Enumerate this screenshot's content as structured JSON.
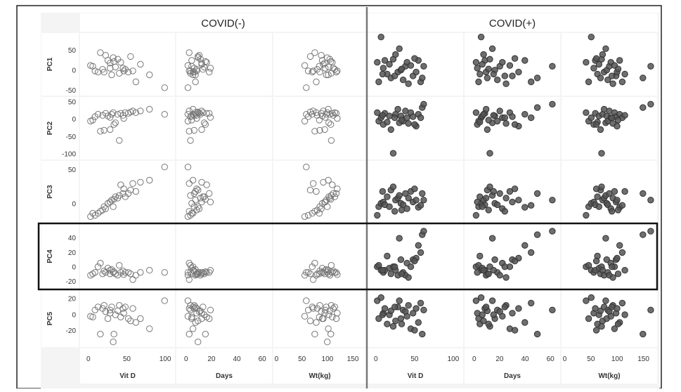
{
  "chart_data": {
    "type": "scatter",
    "layout": "scatter-matrix",
    "groups": [
      "COVID(-)",
      "COVID(+)"
    ],
    "x_variables": [
      {
        "label": "Vit D",
        "ticks": [
          "0",
          "50",
          "100"
        ],
        "range": [
          -8,
          110
        ]
      },
      {
        "label": "Days",
        "ticks": [
          "0",
          "20",
          "40",
          "60"
        ],
        "range": [
          -6,
          66
        ]
      },
      {
        "label": "Wt(kg)",
        "ticks": [
          "0",
          "50",
          "100",
          "150"
        ],
        "range": [
          -2,
          172
        ]
      }
    ],
    "y_variables": [
      {
        "label": "PC1",
        "ticks": [
          "50",
          "0",
          "-50"
        ],
        "range": [
          -58,
          88
        ]
      },
      {
        "label": "PC2",
        "ticks": [
          "50",
          "0",
          "-50",
          "-100"
        ],
        "range": [
          -110,
          58
        ]
      },
      {
        "label": "PC3",
        "ticks": [
          "50",
          "0"
        ],
        "range": [
          -25,
          60
        ]
      },
      {
        "label": "PC4",
        "ticks": [
          "40",
          "20",
          "0",
          "-20"
        ],
        "range": [
          -27,
          56
        ]
      },
      {
        "label": "PC5",
        "ticks": [
          "20",
          "0",
          "-20"
        ],
        "range": [
          -38,
          28
        ]
      }
    ],
    "highlighted_row": "PC4",
    "marker_style": {
      "COVID(-)": {
        "fill": "none",
        "stroke": "#777777"
      },
      "COVID(+)": {
        "fill": "#555555",
        "stroke": "#333333"
      }
    },
    "points": {
      "COVID(-)": [
        {
          "vitd": 2,
          "days": 1,
          "wt": 55,
          "pc": [
            12,
            -5,
            -20,
            -12,
            -2
          ]
        },
        {
          "vitd": 8,
          "days": 3,
          "wt": 62,
          "pc": [
            -2,
            8,
            -18,
            -8,
            6
          ]
        },
        {
          "vitd": 12,
          "days": 5,
          "wt": 70,
          "pc": [
            -5,
            15,
            -15,
            0,
            10
          ]
        },
        {
          "vitd": 15,
          "days": 2,
          "wt": 75,
          "pc": [
            45,
            -35,
            -12,
            5,
            -25
          ]
        },
        {
          "vitd": 18,
          "days": 8,
          "wt": 80,
          "pc": [
            2,
            12,
            -10,
            -10,
            8
          ]
        },
        {
          "vitd": 20,
          "days": 6,
          "wt": 85,
          "pc": [
            -5,
            -32,
            -5,
            -6,
            12
          ]
        },
        {
          "vitd": 22,
          "days": 10,
          "wt": 88,
          "pc": [
            38,
            18,
            -8,
            -8,
            4
          ]
        },
        {
          "vitd": 25,
          "days": 4,
          "wt": 90,
          "pc": [
            25,
            10,
            0,
            -2,
            -5
          ]
        },
        {
          "vitd": 28,
          "days": 12,
          "wt": 95,
          "pc": [
            18,
            -30,
            2,
            -10,
            2
          ]
        },
        {
          "vitd": 30,
          "days": 7,
          "wt": 98,
          "pc": [
            -12,
            15,
            5,
            -4,
            10
          ]
        },
        {
          "vitd": 32,
          "days": 9,
          "wt": 100,
          "pc": [
            32,
            20,
            -5,
            -8,
            -35
          ]
        },
        {
          "vitd": 35,
          "days": 14,
          "wt": 103,
          "pc": [
            8,
            -10,
            10,
            -10,
            0
          ]
        },
        {
          "vitd": 38,
          "days": 11,
          "wt": 105,
          "pc": [
            28,
            15,
            8,
            -12,
            5
          ]
        },
        {
          "vitd": 40,
          "days": 3,
          "wt": 108,
          "pc": [
            -8,
            -62,
            12,
            2,
            12
          ]
        },
        {
          "vitd": 42,
          "days": 16,
          "wt": 110,
          "pc": [
            20,
            18,
            28,
            -8,
            -3
          ]
        },
        {
          "vitd": 45,
          "days": 6,
          "wt": 112,
          "pc": [
            5,
            12,
            15,
            -6,
            8
          ]
        },
        {
          "vitd": 48,
          "days": 13,
          "wt": 115,
          "pc": [
            2,
            20,
            10,
            -8,
            10
          ]
        },
        {
          "vitd": 52,
          "days": 18,
          "wt": 118,
          "pc": [
            -5,
            18,
            15,
            -8,
            -5
          ]
        },
        {
          "vitd": 55,
          "days": 9,
          "wt": 66,
          "pc": [
            35,
            22,
            20,
            -10,
            -8
          ]
        },
        {
          "vitd": 58,
          "days": 2,
          "wt": 72,
          "pc": [
            -2,
            25,
            30,
            -18,
            8
          ]
        },
        {
          "vitd": 62,
          "days": 7,
          "wt": 78,
          "pc": [
            -30,
            20,
            18,
            -12,
            -10
          ]
        },
        {
          "vitd": 68,
          "days": 12,
          "wt": 92,
          "pc": [
            15,
            25,
            32,
            -8,
            -5
          ]
        },
        {
          "vitd": 80,
          "days": 5,
          "wt": 102,
          "pc": [
            -12,
            30,
            35,
            -5,
            -18
          ]
        },
        {
          "vitd": 100,
          "days": 1,
          "wt": 58,
          "pc": [
            -45,
            15,
            55,
            -8,
            18
          ]
        },
        {
          "vitd": 5,
          "days": 4,
          "wt": 84,
          "pc": [
            10,
            -2,
            -15,
            -10,
            -3
          ]
        },
        {
          "vitd": 28,
          "days": 19,
          "wt": 96,
          "pc": [
            5,
            6,
            2,
            -5,
            6
          ]
        },
        {
          "vitd": 33,
          "days": 15,
          "wt": 107,
          "pc": [
            22,
            -15,
            6,
            -7,
            -25
          ]
        },
        {
          "vitd": 46,
          "days": 8,
          "wt": 120,
          "pc": [
            -2,
            3,
            22,
            -11,
            2
          ]
        }
      ],
      "COVID(+)": [
        {
          "vitd": 1,
          "days": 1,
          "wt": 40,
          "pc": [
            20,
            20,
            -18,
            0,
            18
          ]
        },
        {
          "vitd": 3,
          "days": 3,
          "wt": 45,
          "pc": [
            -30,
            -5,
            -5,
            2,
            -5
          ]
        },
        {
          "vitd": 6,
          "days": 5,
          "wt": 50,
          "pc": [
            85,
            5,
            0,
            -5,
            22
          ]
        },
        {
          "vitd": 9,
          "days": 2,
          "wt": 55,
          "pc": [
            5,
            -15,
            2,
            -8,
            2
          ]
        },
        {
          "vitd": 11,
          "days": 8,
          "wt": 58,
          "pc": [
            25,
            18,
            -2,
            -5,
            8
          ]
        },
        {
          "vitd": 14,
          "days": 4,
          "wt": 62,
          "pc": [
            -10,
            -8,
            10,
            15,
            -12
          ]
        },
        {
          "vitd": 17,
          "days": 6,
          "wt": 65,
          "pc": [
            15,
            10,
            -5,
            -2,
            0
          ]
        },
        {
          "vitd": 19,
          "days": 10,
          "wt": 68,
          "pc": [
            -20,
            -30,
            20,
            -10,
            5
          ]
        },
        {
          "vitd": 22,
          "days": 12,
          "wt": 70,
          "pc": [
            28,
            -100,
            25,
            0,
            -15
          ]
        },
        {
          "vitd": 25,
          "days": 7,
          "wt": 72,
          "pc": [
            40,
            15,
            5,
            -5,
            -8
          ]
        },
        {
          "vitd": 28,
          "days": 9,
          "wt": 75,
          "pc": [
            -5,
            30,
            8,
            -12,
            10
          ]
        },
        {
          "vitd": 30,
          "days": 14,
          "wt": 78,
          "pc": [
            55,
            -10,
            12,
            40,
            18
          ]
        },
        {
          "vitd": 32,
          "days": 16,
          "wt": 80,
          "pc": [
            0,
            10,
            0,
            10,
            -5
          ]
        },
        {
          "vitd": 35,
          "days": 18,
          "wt": 82,
          "pc": [
            -25,
            -5,
            -2,
            -8,
            6
          ]
        },
        {
          "vitd": 38,
          "days": 20,
          "wt": 85,
          "pc": [
            10,
            25,
            15,
            -12,
            4
          ]
        },
        {
          "vitd": 40,
          "days": 22,
          "wt": 88,
          "pc": [
            20,
            5,
            -8,
            5,
            -2
          ]
        },
        {
          "vitd": 42,
          "days": 25,
          "wt": 92,
          "pc": [
            -35,
            -12,
            8,
            -15,
            12
          ]
        },
        {
          "vitd": 45,
          "days": 28,
          "wt": 95,
          "pc": [
            12,
            20,
            18,
            0,
            -18
          ]
        },
        {
          "vitd": 48,
          "days": 30,
          "wt": 98,
          "pc": [
            -15,
            8,
            2,
            10,
            2
          ]
        },
        {
          "vitd": 52,
          "days": 35,
          "wt": 100,
          "pc": [
            -5,
            -20,
            5,
            12,
            8
          ]
        },
        {
          "vitd": 55,
          "days": 40,
          "wt": 105,
          "pc": [
            25,
            15,
            -6,
            30,
            -10
          ]
        },
        {
          "vitd": 58,
          "days": 45,
          "wt": 110,
          "pc": [
            -30,
            5,
            -3,
            20,
            15
          ]
        },
        {
          "vitd": 60,
          "days": 50,
          "wt": 150,
          "pc": [
            -20,
            35,
            15,
            45,
            -25
          ]
        },
        {
          "vitd": 62,
          "days": 62,
          "wt": 165,
          "pc": [
            10,
            45,
            5,
            50,
            6
          ]
        },
        {
          "vitd": 33,
          "days": 11,
          "wt": 102,
          "pc": [
            3,
            -2,
            -10,
            -10,
            -12
          ]
        },
        {
          "vitd": 8,
          "days": 15,
          "wt": 115,
          "pc": [
            -10,
            12,
            18,
            -5,
            0
          ]
        },
        {
          "vitd": 50,
          "days": 32,
          "wt": 60,
          "pc": [
            30,
            -15,
            22,
            8,
            -20
          ]
        },
        {
          "vitd": 24,
          "days": 24,
          "wt": 90,
          "pc": [
            -15,
            5,
            -12,
            0,
            10
          ]
        }
      ]
    }
  }
}
